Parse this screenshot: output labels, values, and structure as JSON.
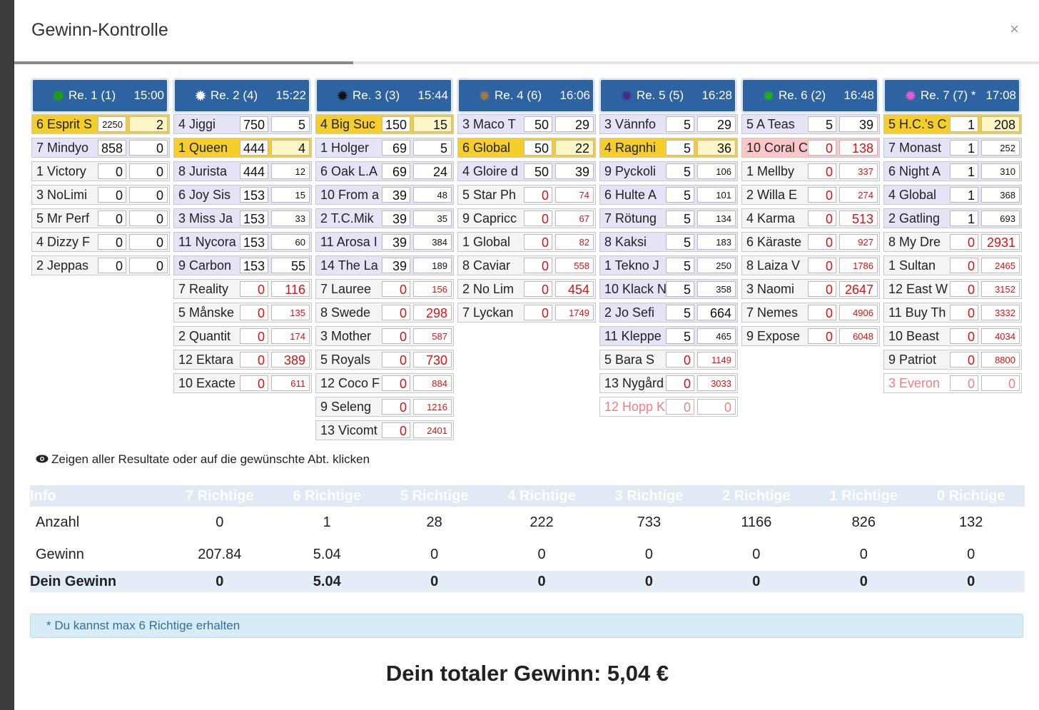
{
  "modal": {
    "title": "Gewinn-Kontrolle",
    "close_label": "×",
    "progress": 0.33
  },
  "races": [
    {
      "label": "Re. 1 (1)",
      "time": "15:00",
      "icon": "dot-icon",
      "icon_color": "#1a9b1a",
      "rows": [
        {
          "name": "6 Esprit S",
          "a": "2250",
          "b": "2",
          "style": "win",
          "b_small": false,
          "a_small": true
        },
        {
          "name": "7 Mindyo",
          "a": "858",
          "b": "0",
          "style": "sel"
        },
        {
          "name": "1 Victory",
          "a": "0",
          "b": "0",
          "style": "normal"
        },
        {
          "name": "3 NoLimi",
          "a": "0",
          "b": "0",
          "style": "normal"
        },
        {
          "name": "5 Mr Perf",
          "a": "0",
          "b": "0",
          "style": "normal"
        },
        {
          "name": "4 Dizzy F",
          "a": "0",
          "b": "0",
          "style": "normal"
        },
        {
          "name": "2 Jeppas",
          "a": "0",
          "b": "0",
          "style": "normal"
        }
      ]
    },
    {
      "label": "Re. 2 (4)",
      "time": "15:22",
      "icon": "sun-icon",
      "icon_color": "#ffffff",
      "rows": [
        {
          "name": "4 Jiggi",
          "a": "750",
          "b": "5",
          "style": "sel"
        },
        {
          "name": "1 Queen",
          "a": "444",
          "b": "4",
          "style": "win"
        },
        {
          "name": "8 Jurista",
          "a": "444",
          "b": "12",
          "style": "sel",
          "b_small": true
        },
        {
          "name": "6 Joy Sis",
          "a": "153",
          "b": "15",
          "style": "sel",
          "b_small": true
        },
        {
          "name": "3 Miss Ja",
          "a": "153",
          "b": "33",
          "style": "sel",
          "b_small": true
        },
        {
          "name": "11 Nycora",
          "a": "153",
          "b": "60",
          "style": "sel",
          "b_small": true
        },
        {
          "name": "9 Carbon",
          "a": "153",
          "b": "55",
          "style": "sel"
        },
        {
          "name": "7 Reality",
          "a": "0",
          "b": "116",
          "style": "normal",
          "red": true
        },
        {
          "name": "5 Månske",
          "a": "0",
          "b": "135",
          "style": "normal",
          "red": true,
          "b_small": true
        },
        {
          "name": "2 Quantit",
          "a": "0",
          "b": "174",
          "style": "normal",
          "red": true,
          "b_small": true
        },
        {
          "name": "12 Ektara",
          "a": "0",
          "b": "389",
          "style": "normal",
          "red": true
        },
        {
          "name": "10 Exacte",
          "a": "0",
          "b": "611",
          "style": "normal",
          "red": true,
          "b_small": true
        }
      ]
    },
    {
      "label": "Re. 3 (3)",
      "time": "15:44",
      "icon": "sun-icon",
      "icon_color": "#111111",
      "rows": [
        {
          "name": "4 Big Suc",
          "a": "150",
          "b": "15",
          "style": "win"
        },
        {
          "name": "1 Holger",
          "a": "69",
          "b": "5",
          "style": "sel"
        },
        {
          "name": "6 Oak L.A",
          "a": "69",
          "b": "24",
          "style": "sel"
        },
        {
          "name": "10 From a",
          "a": "39",
          "b": "48",
          "style": "sel",
          "b_small": true
        },
        {
          "name": "2 T.C.Mik",
          "a": "39",
          "b": "35",
          "style": "sel",
          "b_small": true
        },
        {
          "name": "11 Arosa I",
          "a": "39",
          "b": "384",
          "style": "sel",
          "b_small": true
        },
        {
          "name": "14 The La",
          "a": "39",
          "b": "189",
          "style": "sel",
          "b_small": true
        },
        {
          "name": "7 Lauree",
          "a": "0",
          "b": "156",
          "style": "normal",
          "red": true,
          "b_small": true
        },
        {
          "name": "8 Swede",
          "a": "0",
          "b": "298",
          "style": "normal",
          "red": true
        },
        {
          "name": "3 Mother",
          "a": "0",
          "b": "587",
          "style": "normal",
          "red": true,
          "b_small": true
        },
        {
          "name": "5 Royals",
          "a": "0",
          "b": "730",
          "style": "normal",
          "red": true
        },
        {
          "name": "12 Coco F",
          "a": "0",
          "b": "884",
          "style": "normal",
          "red": true,
          "b_small": true
        },
        {
          "name": "9 Seleng",
          "a": "0",
          "b": "1216",
          "style": "normal",
          "red": true,
          "b_small": true
        },
        {
          "name": "13 Vicomt",
          "a": "0",
          "b": "2401",
          "style": "normal",
          "red": true,
          "b_small": true
        }
      ]
    },
    {
      "label": "Re. 4 (6)",
      "time": "16:06",
      "icon": "sun-icon",
      "icon_color": "#9b7a4a",
      "rows": [
        {
          "name": "3 Maco T",
          "a": "50",
          "b": "29",
          "style": "sel"
        },
        {
          "name": "6 Global",
          "a": "50",
          "b": "22",
          "style": "win"
        },
        {
          "name": "4 Gloire d",
          "a": "50",
          "b": "39",
          "style": "sel"
        },
        {
          "name": "5 Star Ph",
          "a": "0",
          "b": "74",
          "style": "normal",
          "red": true,
          "b_small": true
        },
        {
          "name": "9 Capricc",
          "a": "0",
          "b": "67",
          "style": "normal",
          "red": true,
          "b_small": true
        },
        {
          "name": "1 Global",
          "a": "0",
          "b": "82",
          "style": "normal",
          "red": true,
          "b_small": true
        },
        {
          "name": "8 Caviar",
          "a": "0",
          "b": "558",
          "style": "normal",
          "red": true,
          "b_small": true
        },
        {
          "name": "2 No Lim",
          "a": "0",
          "b": "454",
          "style": "normal",
          "red": true
        },
        {
          "name": "7 Lyckan",
          "a": "0",
          "b": "1749",
          "style": "normal",
          "red": true,
          "b_small": true
        }
      ]
    },
    {
      "label": "Re. 5 (5)",
      "time": "16:28",
      "icon": "sun-icon",
      "icon_color": "#4b2a8a",
      "rows": [
        {
          "name": "3 Vännfo",
          "a": "5",
          "b": "29",
          "style": "sel"
        },
        {
          "name": "4 Ragnhi",
          "a": "5",
          "b": "36",
          "style": "win"
        },
        {
          "name": "9 Pyckoli",
          "a": "5",
          "b": "106",
          "style": "sel",
          "b_small": true
        },
        {
          "name": "6 Hulte A",
          "a": "5",
          "b": "101",
          "style": "sel",
          "b_small": true
        },
        {
          "name": "7 Rötung",
          "a": "5",
          "b": "134",
          "style": "sel",
          "b_small": true
        },
        {
          "name": "8 Kaksi",
          "a": "5",
          "b": "183",
          "style": "sel",
          "b_small": true
        },
        {
          "name": "1 Tekno J",
          "a": "5",
          "b": "250",
          "style": "sel",
          "b_small": true
        },
        {
          "name": "10 Klack N",
          "a": "5",
          "b": "358",
          "style": "sel",
          "b_small": true
        },
        {
          "name": "2 Jo Sefi",
          "a": "5",
          "b": "664",
          "style": "sel"
        },
        {
          "name": "11 Kleppe",
          "a": "5",
          "b": "465",
          "style": "sel",
          "b_small": true
        },
        {
          "name": "5 Bara S",
          "a": "0",
          "b": "1149",
          "style": "normal",
          "red": true,
          "b_small": true
        },
        {
          "name": "13 Nygård",
          "a": "0",
          "b": "3033",
          "style": "normal",
          "red": true,
          "b_small": true
        },
        {
          "name": "12 Hopp K",
          "a": "0",
          "b": "0",
          "style": "scratch"
        }
      ]
    },
    {
      "label": "Re. 6 (2)",
      "time": "16:48",
      "icon": "sun-icon",
      "icon_color": "#1fb01f",
      "rows": [
        {
          "name": "5 A Teas",
          "a": "5",
          "b": "39",
          "style": "sel"
        },
        {
          "name": "10 Coral C",
          "a": "0",
          "b": "138",
          "style": "bad",
          "red": true
        },
        {
          "name": "1 Mellby",
          "a": "0",
          "b": "337",
          "style": "normal",
          "red": true,
          "b_small": true
        },
        {
          "name": "2 Willa E",
          "a": "0",
          "b": "274",
          "style": "normal",
          "red": true,
          "b_small": true
        },
        {
          "name": "4 Karma",
          "a": "0",
          "b": "513",
          "style": "normal",
          "red": true
        },
        {
          "name": "6 Käraste",
          "a": "0",
          "b": "927",
          "style": "normal",
          "red": true,
          "b_small": true
        },
        {
          "name": "8 Laiza V",
          "a": "0",
          "b": "1786",
          "style": "normal",
          "red": true,
          "b_small": true
        },
        {
          "name": "3 Naomi",
          "a": "0",
          "b": "2647",
          "style": "normal",
          "red": true
        },
        {
          "name": "7 Nemes",
          "a": "0",
          "b": "4906",
          "style": "normal",
          "red": true,
          "b_small": true
        },
        {
          "name": "9 Expose",
          "a": "0",
          "b": "6048",
          "style": "normal",
          "red": true,
          "b_small": true
        }
      ]
    },
    {
      "label": "Re. 7 (7) *",
      "time": "17:08",
      "icon": "sun-icon",
      "icon_color": "#e85ad8",
      "rows": [
        {
          "name": "5 H.C.'s C",
          "a": "1",
          "b": "208",
          "style": "win"
        },
        {
          "name": "7 Monast",
          "a": "1",
          "b": "252",
          "style": "sel",
          "b_small": true
        },
        {
          "name": "6 Night A",
          "a": "1",
          "b": "310",
          "style": "sel",
          "b_small": true
        },
        {
          "name": "4 Global",
          "a": "1",
          "b": "368",
          "style": "sel",
          "b_small": true
        },
        {
          "name": "2 Gatling",
          "a": "1",
          "b": "693",
          "style": "sel",
          "b_small": true
        },
        {
          "name": "8 My Dre",
          "a": "0",
          "b": "2931",
          "style": "normal",
          "red": true
        },
        {
          "name": "1 Sultan",
          "a": "0",
          "b": "2465",
          "style": "normal",
          "red": true,
          "b_small": true
        },
        {
          "name": "12 East W",
          "a": "0",
          "b": "3152",
          "style": "normal",
          "red": true,
          "b_small": true
        },
        {
          "name": "11 Buy Th",
          "a": "0",
          "b": "3332",
          "style": "normal",
          "red": true,
          "b_small": true
        },
        {
          "name": "10 Beast",
          "a": "0",
          "b": "4034",
          "style": "normal",
          "red": true,
          "b_small": true
        },
        {
          "name": "9 Patriot",
          "a": "0",
          "b": "8800",
          "style": "normal",
          "red": true,
          "b_small": true
        },
        {
          "name": "3 Everon",
          "a": "0",
          "b": "0",
          "style": "scratch"
        }
      ]
    }
  ],
  "hint": "Zeigen aller Resultate oder auf die gewünschte Abt. klicken",
  "stats": {
    "headers": [
      "Info",
      "7 Richtige",
      "6 Richtige",
      "5 Richtige",
      "4 Richtige",
      "3 Richtige",
      "2 Richtige",
      "1 Richtige",
      "0 Richtige"
    ],
    "rows": [
      [
        "Anzahl",
        "0",
        "1",
        "28",
        "222",
        "733",
        "1166",
        "826",
        "132"
      ],
      [
        "Gewinn",
        "207.84",
        "5.04",
        "0",
        "0",
        "0",
        "0",
        "0",
        "0"
      ]
    ],
    "total": [
      "Dein Gewinn",
      "0",
      "5.04",
      "0",
      "0",
      "0",
      "0",
      "0",
      "0"
    ]
  },
  "note": "* Du kannst max 6 Richtige erhalten",
  "total_label": "Dein totaler Gewinn: 5,04 €"
}
